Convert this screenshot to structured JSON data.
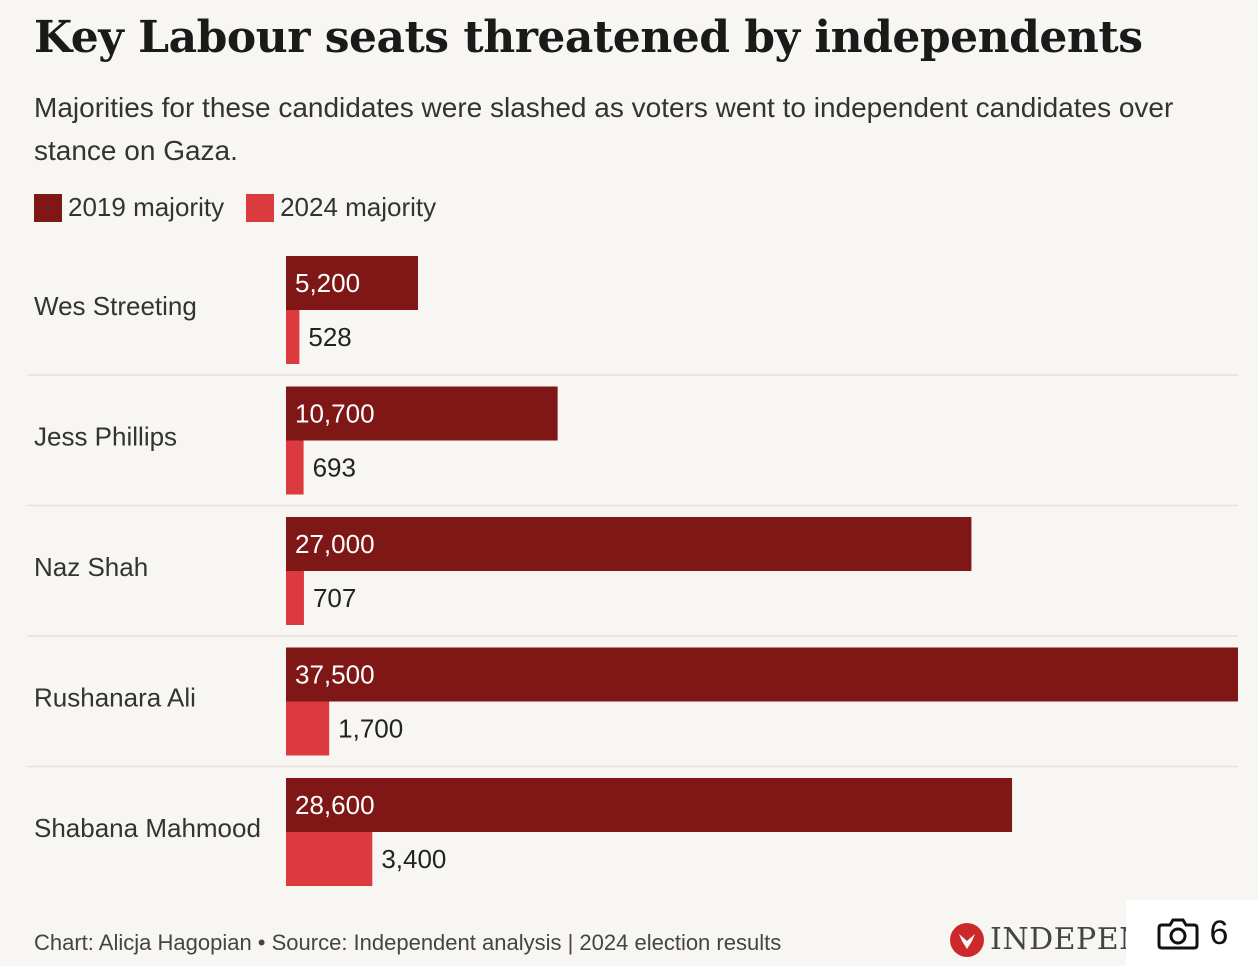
{
  "title": "Key Labour seats threatened by independents",
  "subtitle": "Majorities for these candidates were slashed as voters went to independent candidates over stance on Gaza.",
  "footer": "Chart: Alicja Hagopian • Source: Independent analysis | 2024 election results",
  "logo_text": "INDEPENDENT",
  "photo_badge": {
    "count": "6",
    "icon": "camera-icon"
  },
  "colors": {
    "series_2019": "#7e1716",
    "series_2024": "#db3a3f",
    "background": "#f8f6f3"
  },
  "chart_data": {
    "type": "bar",
    "orientation": "horizontal",
    "title": "Key Labour seats threatened by independents",
    "legend_position": "top-left",
    "grid": false,
    "xlim": [
      0,
      37500
    ],
    "categories": [
      "Wes Streeting",
      "Jess Phillips",
      "Naz Shah",
      "Rushanara Ali",
      "Shabana Mahmood"
    ],
    "series": [
      {
        "name": "2019 majority",
        "values": [
          5200,
          10700,
          27000,
          37500,
          28600
        ],
        "labels": [
          "5,200",
          "10,700",
          "27,000",
          "37,500",
          "28,600"
        ]
      },
      {
        "name": "2024 majority",
        "values": [
          528,
          693,
          707,
          1700,
          3400
        ],
        "labels": [
          "528",
          "693",
          "707",
          "1,700",
          "3,400"
        ]
      }
    ]
  }
}
